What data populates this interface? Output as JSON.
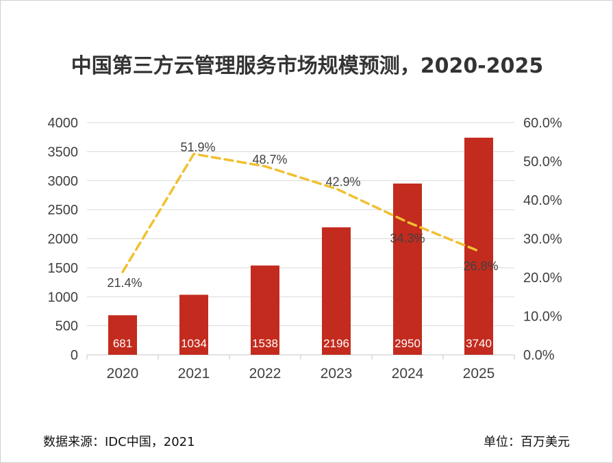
{
  "title": "中国第三方云管理服务市场规模预测，2020-2025",
  "footer": {
    "source": "数据来源：IDC中国，2021",
    "unit": "单位：百万美元"
  },
  "colors": {
    "bar": "#c32b1e",
    "line": "#f0c030",
    "grid": "#d9d9d9",
    "text": "#404040"
  },
  "chart_data": {
    "type": "bar",
    "categories": [
      "2020",
      "2021",
      "2022",
      "2023",
      "2024",
      "2025"
    ],
    "series": [
      {
        "type": "bar",
        "axis": "left",
        "values": [
          681,
          1034,
          1538,
          2196,
          2950,
          3740
        ]
      },
      {
        "type": "line",
        "axis": "right",
        "style": "dashed",
        "values": [
          21.4,
          51.9,
          48.7,
          42.9,
          34.3,
          26.8
        ],
        "labels": [
          "21.4%",
          "51.9%",
          "48.7%",
          "42.9%",
          "34.3%",
          "26.8%"
        ]
      }
    ],
    "ylim": [
      0,
      4000
    ],
    "y_ticks": [
      "0",
      "500",
      "1000",
      "1500",
      "2000",
      "2500",
      "3000",
      "3500",
      "4000"
    ],
    "y2lim": [
      0,
      60
    ],
    "y2_ticks": [
      "0.0%",
      "10.0%",
      "20.0%",
      "30.0%",
      "40.0%",
      "50.0%",
      "60.0%"
    ],
    "grid": true
  }
}
